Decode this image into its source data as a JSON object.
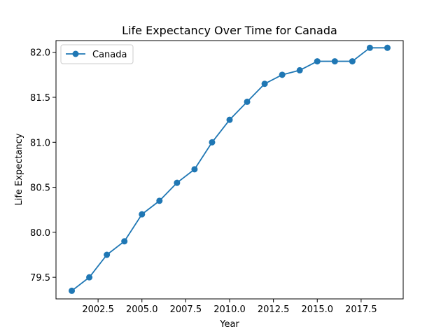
{
  "chart_data": {
    "type": "line",
    "title": "Life Expectancy Over Time for Canada",
    "xlabel": "Year",
    "ylabel": "Life Expectancy",
    "xlim": [
      2000.1,
      2019.9
    ],
    "ylim": [
      79.26,
      82.13
    ],
    "xticks": [
      2002.5,
      2005.0,
      2007.5,
      2010.0,
      2012.5,
      2015.0,
      2017.5
    ],
    "xtick_labels": [
      "2002.5",
      "2005.0",
      "2007.5",
      "2010.0",
      "2012.5",
      "2015.0",
      "2017.5"
    ],
    "yticks": [
      79.5,
      80.0,
      80.5,
      81.0,
      81.5,
      82.0
    ],
    "ytick_labels": [
      "79.5",
      "80.0",
      "80.5",
      "81.0",
      "81.5",
      "82.0"
    ],
    "grid": false,
    "legend_position": "upper-left",
    "series": [
      {
        "name": "Canada",
        "color": "#1f77b4",
        "marker": "circle",
        "x": [
          2001,
          2002,
          2003,
          2004,
          2005,
          2006,
          2007,
          2008,
          2009,
          2010,
          2011,
          2012,
          2013,
          2014,
          2015,
          2016,
          2017,
          2018,
          2019
        ],
        "y": [
          79.35,
          79.5,
          79.75,
          79.9,
          80.2,
          80.35,
          80.55,
          80.7,
          81.0,
          81.25,
          81.45,
          81.65,
          81.75,
          81.8,
          81.9,
          81.9,
          81.9,
          82.05,
          82.05
        ]
      }
    ]
  }
}
